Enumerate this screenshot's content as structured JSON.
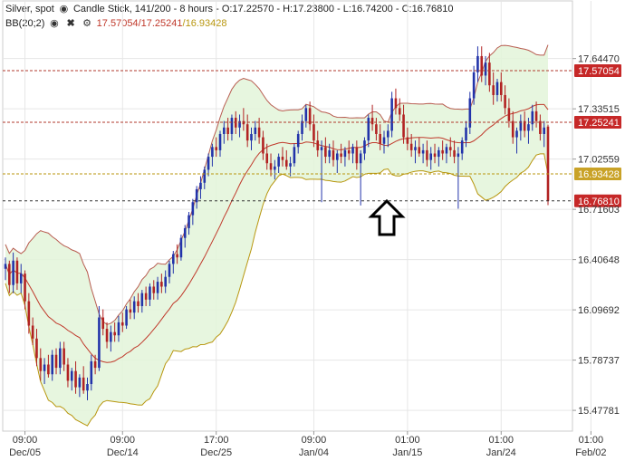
{
  "header": {
    "instrument": "Silver, spot",
    "chart_type": "Candle Stick, 141/200 - 8 hours",
    "ohlc": "- O:17.22570 - H:17.23800 - L:16.74200 - C:16.76810",
    "indicator": "BB(20;2)",
    "bb_upper": "17.57054",
    "bb_mid": "17.25241",
    "bb_lower": "16.93428",
    "eye_icon": "eye-icon",
    "close_icon": "close-icon",
    "settings_icon": "gear-icon"
  },
  "colors": {
    "up_candle": "#2233aa",
    "down_candle": "#b22222",
    "band_fill": "#e3f4d9",
    "band_upper_line": "#b85c50",
    "band_mid_line": "#c0392b",
    "band_lower_line": "#b8960e",
    "price_tag": "#c62828",
    "lower_tag": "#c9a227"
  },
  "annotation": {
    "icon": "up-arrow-icon"
  },
  "chart_data": {
    "type": "candlestick",
    "ylim": [
      15.35,
      18.0
    ],
    "yticks": [
      "17.64470",
      "17.33515",
      "17.02559",
      "16.71603",
      "16.40648",
      "16.09692",
      "15.78737",
      "15.47781"
    ],
    "ytick_values": [
      17.6447,
      17.33515,
      17.02559,
      16.71603,
      16.40648,
      16.09692,
      15.78737,
      15.47781
    ],
    "xticks": [
      {
        "time": "09:00",
        "date": "Dec/05",
        "index": 5
      },
      {
        "time": "09:00",
        "date": "Dec/14",
        "index": 30
      },
      {
        "time": "17:00",
        "date": "Dec/25",
        "index": 54
      },
      {
        "time": "09:00",
        "date": "Jan/04",
        "index": 79
      },
      {
        "time": "01:00",
        "date": "Jan/15",
        "index": 103
      },
      {
        "time": "01:00",
        "date": "Jan/24",
        "index": 127
      },
      {
        "time": "01:00",
        "date": "Feb/02",
        "index": 150
      }
    ],
    "price_tags": [
      {
        "label": "17.57054",
        "value": 17.57054,
        "kind": "upper"
      },
      {
        "label": "17.25241",
        "value": 17.25241,
        "kind": "mid"
      },
      {
        "label": "16.93428",
        "value": 16.93428,
        "kind": "lower"
      },
      {
        "label": "16.76810",
        "value": 16.7681,
        "kind": "last"
      }
    ],
    "series": [
      {
        "type": "candle",
        "ohlc": [
          [
            16.35,
            16.42,
            16.28,
            16.38
          ],
          [
            16.38,
            16.4,
            16.2,
            16.25
          ],
          [
            16.25,
            16.45,
            16.2,
            16.4
          ],
          [
            16.4,
            16.42,
            16.22,
            16.26
          ],
          [
            16.26,
            16.38,
            16.2,
            16.32
          ],
          [
            16.32,
            16.34,
            16.1,
            16.15
          ],
          [
            16.15,
            16.2,
            15.95,
            16.0
          ],
          [
            16.0,
            16.05,
            15.88,
            15.92
          ],
          [
            15.92,
            15.98,
            15.75,
            15.8
          ],
          [
            15.8,
            15.86,
            15.66,
            15.72
          ],
          [
            15.72,
            15.8,
            15.64,
            15.76
          ],
          [
            15.76,
            15.82,
            15.68,
            15.7
          ],
          [
            15.7,
            15.85,
            15.66,
            15.82
          ],
          [
            15.82,
            15.86,
            15.7,
            15.74
          ],
          [
            15.74,
            15.9,
            15.7,
            15.86
          ],
          [
            15.86,
            15.9,
            15.72,
            15.76
          ],
          [
            15.76,
            15.8,
            15.62,
            15.66
          ],
          [
            15.66,
            15.74,
            15.6,
            15.72
          ],
          [
            15.72,
            15.78,
            15.58,
            15.62
          ],
          [
            15.62,
            15.7,
            15.56,
            15.68
          ],
          [
            15.68,
            15.75,
            15.58,
            15.6
          ],
          [
            15.6,
            15.68,
            15.54,
            15.64
          ],
          [
            15.64,
            15.82,
            15.6,
            15.78
          ],
          [
            15.78,
            15.82,
            15.7,
            15.74
          ],
          [
            15.74,
            16.12,
            15.72,
            16.05
          ],
          [
            16.05,
            16.1,
            15.94,
            15.98
          ],
          [
            15.98,
            16.02,
            15.86,
            15.9
          ],
          [
            15.9,
            16.0,
            15.84,
            15.96
          ],
          [
            15.96,
            16.02,
            15.9,
            15.94
          ],
          [
            15.94,
            16.06,
            15.9,
            16.02
          ],
          [
            16.02,
            16.08,
            15.96,
            16.0
          ],
          [
            16.0,
            16.12,
            15.98,
            16.1
          ],
          [
            16.1,
            16.16,
            16.04,
            16.08
          ],
          [
            16.08,
            16.18,
            16.04,
            16.15
          ],
          [
            16.15,
            16.2,
            16.08,
            16.12
          ],
          [
            16.12,
            16.22,
            16.08,
            16.2
          ],
          [
            16.2,
            16.24,
            16.12,
            16.16
          ],
          [
            16.16,
            16.26,
            16.12,
            16.24
          ],
          [
            16.24,
            16.28,
            16.16,
            16.2
          ],
          [
            16.2,
            16.3,
            16.16,
            16.27
          ],
          [
            16.27,
            16.32,
            16.2,
            16.24
          ],
          [
            16.24,
            16.34,
            16.2,
            16.3
          ],
          [
            16.3,
            16.4,
            16.26,
            16.38
          ],
          [
            16.38,
            16.46,
            16.32,
            16.44
          ],
          [
            16.44,
            16.5,
            16.38,
            16.42
          ],
          [
            16.42,
            16.56,
            16.4,
            16.54
          ],
          [
            16.54,
            16.62,
            16.48,
            16.6
          ],
          [
            16.6,
            16.7,
            16.56,
            16.68
          ],
          [
            16.68,
            16.78,
            16.62,
            16.76
          ],
          [
            16.76,
            16.86,
            16.72,
            16.84
          ],
          [
            16.84,
            16.92,
            16.78,
            16.88
          ],
          [
            16.88,
            16.98,
            16.84,
            16.96
          ],
          [
            16.96,
            17.06,
            16.92,
            17.04
          ],
          [
            17.04,
            17.12,
            16.98,
            17.1
          ],
          [
            17.1,
            17.16,
            17.04,
            17.08
          ],
          [
            17.08,
            17.2,
            17.04,
            17.18
          ],
          [
            17.18,
            17.26,
            17.12,
            17.22
          ],
          [
            17.22,
            17.28,
            17.14,
            17.18
          ],
          [
            17.18,
            17.3,
            17.14,
            17.28
          ],
          [
            17.28,
            17.32,
            17.18,
            17.22
          ],
          [
            17.22,
            17.3,
            17.16,
            17.26
          ],
          [
            17.26,
            17.34,
            17.2,
            17.24
          ],
          [
            17.24,
            17.3,
            17.1,
            17.14
          ],
          [
            17.14,
            17.22,
            17.08,
            17.18
          ],
          [
            17.18,
            17.26,
            17.14,
            17.22
          ],
          [
            17.22,
            17.28,
            17.12,
            17.16
          ],
          [
            17.16,
            17.2,
            17.02,
            17.06
          ],
          [
            17.06,
            17.12,
            16.96,
            17.0
          ],
          [
            17.0,
            17.06,
            16.92,
            16.96
          ],
          [
            16.96,
            17.02,
            16.9,
            16.98
          ],
          [
            16.98,
            17.06,
            16.94,
            17.04
          ],
          [
            17.04,
            17.1,
            16.98,
            17.02
          ],
          [
            17.02,
            17.08,
            16.96,
            16.98
          ],
          [
            16.98,
            17.04,
            16.92,
            17.0
          ],
          [
            17.0,
            17.12,
            16.98,
            17.1
          ],
          [
            17.1,
            17.2,
            17.06,
            17.18
          ],
          [
            17.18,
            17.3,
            17.14,
            17.26
          ],
          [
            17.26,
            17.36,
            17.22,
            17.34
          ],
          [
            17.34,
            17.38,
            17.2,
            17.24
          ],
          [
            17.24,
            17.3,
            17.1,
            17.14
          ],
          [
            17.14,
            17.2,
            17.04,
            17.08
          ],
          [
            17.08,
            17.14,
            16.76,
            17.1
          ],
          [
            17.1,
            17.16,
            17.0,
            17.04
          ],
          [
            17.04,
            17.12,
            17.0,
            17.08
          ],
          [
            17.08,
            17.14,
            16.98,
            17.02
          ],
          [
            17.02,
            17.08,
            16.94,
            17.06
          ],
          [
            17.06,
            17.12,
            17.0,
            17.04
          ],
          [
            17.04,
            17.1,
            16.98,
            17.08
          ],
          [
            17.08,
            17.14,
            17.02,
            17.06
          ],
          [
            17.06,
            17.12,
            17.0,
            17.1
          ],
          [
            17.1,
            17.14,
            16.96,
            17.0
          ],
          [
            17.0,
            17.08,
            16.74,
            17.06
          ],
          [
            17.06,
            17.16,
            17.02,
            17.14
          ],
          [
            17.14,
            17.3,
            17.1,
            17.28
          ],
          [
            17.28,
            17.36,
            17.2,
            17.24
          ],
          [
            17.24,
            17.28,
            17.14,
            17.18
          ],
          [
            17.18,
            17.24,
            17.08,
            17.12
          ],
          [
            17.12,
            17.2,
            17.06,
            17.16
          ],
          [
            17.16,
            17.24,
            17.1,
            17.2
          ],
          [
            17.2,
            17.44,
            17.16,
            17.4
          ],
          [
            17.4,
            17.46,
            17.3,
            17.34
          ],
          [
            17.34,
            17.4,
            17.26,
            17.3
          ],
          [
            17.3,
            17.36,
            17.12,
            17.16
          ],
          [
            17.16,
            17.22,
            17.08,
            17.12
          ],
          [
            17.12,
            17.18,
            17.04,
            17.08
          ],
          [
            17.08,
            17.14,
            17.0,
            17.1
          ],
          [
            17.1,
            17.16,
            17.04,
            17.06
          ],
          [
            17.06,
            17.12,
            17.0,
            17.08
          ],
          [
            17.08,
            17.14,
            16.98,
            17.02
          ],
          [
            17.02,
            17.1,
            16.96,
            17.06
          ],
          [
            17.06,
            17.12,
            17.0,
            17.04
          ],
          [
            17.04,
            17.1,
            16.98,
            17.08
          ],
          [
            17.08,
            17.14,
            17.02,
            17.06
          ],
          [
            17.06,
            17.12,
            17.0,
            17.1
          ],
          [
            17.1,
            17.16,
            17.04,
            17.08
          ],
          [
            17.08,
            17.14,
            17.0,
            17.04
          ],
          [
            17.04,
            17.1,
            16.72,
            17.06
          ],
          [
            17.06,
            17.16,
            17.02,
            17.14
          ],
          [
            17.14,
            17.26,
            17.1,
            17.22
          ],
          [
            17.22,
            17.44,
            17.18,
            17.4
          ],
          [
            17.4,
            17.6,
            17.36,
            17.56
          ],
          [
            17.56,
            17.72,
            17.5,
            17.66
          ],
          [
            17.66,
            17.72,
            17.5,
            17.54
          ],
          [
            17.54,
            17.66,
            17.48,
            17.62
          ],
          [
            17.62,
            17.68,
            17.44,
            17.48
          ],
          [
            17.48,
            17.56,
            17.36,
            17.42
          ],
          [
            17.42,
            17.52,
            17.38,
            17.5
          ],
          [
            17.5,
            17.56,
            17.38,
            17.42
          ],
          [
            17.42,
            17.48,
            17.3,
            17.34
          ],
          [
            17.34,
            17.4,
            17.22,
            17.26
          ],
          [
            17.26,
            17.32,
            17.12,
            17.16
          ],
          [
            17.16,
            17.22,
            17.06,
            17.2
          ],
          [
            17.2,
            17.3,
            17.14,
            17.26
          ],
          [
            17.26,
            17.32,
            17.16,
            17.2
          ],
          [
            17.2,
            17.28,
            17.12,
            17.24
          ],
          [
            17.24,
            17.36,
            17.2,
            17.32
          ],
          [
            17.32,
            17.38,
            17.22,
            17.26
          ],
          [
            17.26,
            17.3,
            17.14,
            17.18
          ],
          [
            17.18,
            17.26,
            17.1,
            17.22
          ],
          [
            17.2257,
            17.238,
            16.742,
            16.7681
          ]
        ]
      }
    ]
  }
}
